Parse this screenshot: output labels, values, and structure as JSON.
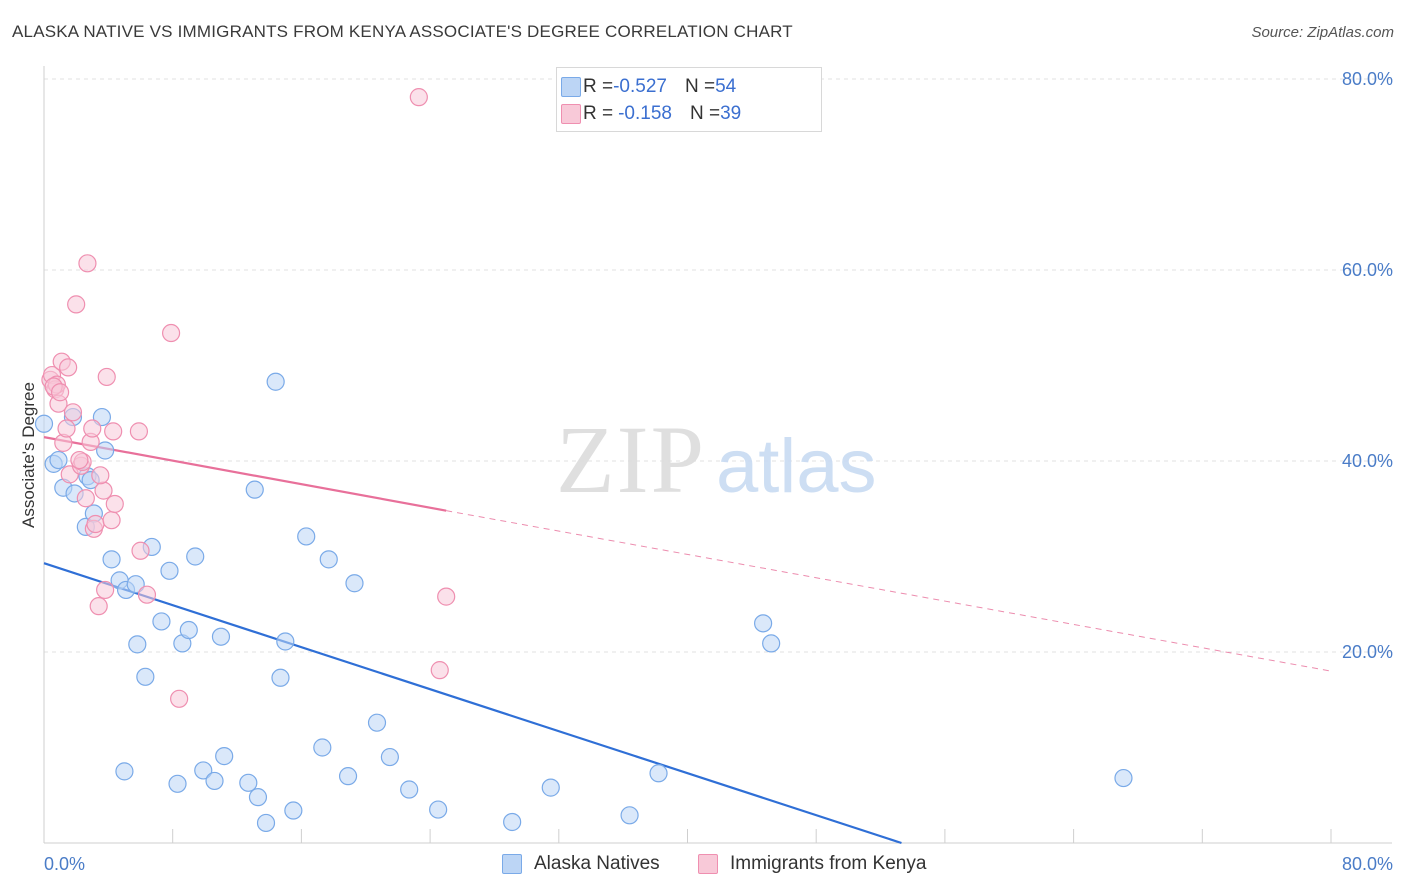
{
  "header": {
    "title": "ALASKA NATIVE VS IMMIGRANTS FROM KENYA ASSOCIATE'S DEGREE CORRELATION CHART",
    "source": "Source: ZipAtlas.com"
  },
  "watermark": {
    "zip": "ZIP",
    "atlas": "atlas"
  },
  "legend": {
    "rows": [
      {
        "r_label": "R = ",
        "r_value": "-0.527",
        "n_label": "N = ",
        "n_value": "54",
        "color": "#7aaae8",
        "fill": "#bcd5f5"
      },
      {
        "r_label": "R = ",
        "r_value": "-0.158",
        "n_label": "N = ",
        "n_value": "39",
        "color": "#ef8fb0",
        "fill": "#f8c9d8"
      }
    ]
  },
  "bottom_legend": {
    "items": [
      {
        "label": "Alaska Natives",
        "fill": "#bcd5f5",
        "color": "#7aaae8"
      },
      {
        "label": "Immigrants from Kenya",
        "fill": "#f8c9d8",
        "color": "#ef8fb0"
      }
    ]
  },
  "chart_data": {
    "type": "scatter",
    "title": "ALASKA NATIVE VS IMMIGRANTS FROM KENYA ASSOCIATE'S DEGREE CORRELATION CHART",
    "xlabel": "",
    "ylabel": "Associate's Degree",
    "xlim": [
      0,
      80
    ],
    "ylim": [
      0,
      80
    ],
    "x_tick_labels": [
      "0.0%",
      "80.0%"
    ],
    "y_ticks": [
      20,
      40,
      60,
      80
    ],
    "y_tick_labels": [
      "20.0%",
      "40.0%",
      "60.0%",
      "80.0%"
    ],
    "grid": true,
    "legend_position": "top-center",
    "series": [
      {
        "name": "Alaska Natives",
        "color": "#7aaae8",
        "fill": "#bcd5f5",
        "trend_color": "#2f6fd6",
        "trend": {
          "x0": 0,
          "y0": 29.3,
          "x1": 53.3,
          "y1": 0
        },
        "points": [
          [
            0.0,
            43.9
          ],
          [
            0.6,
            39.7
          ],
          [
            0.9,
            40.1
          ],
          [
            1.2,
            37.2
          ],
          [
            1.8,
            44.6
          ],
          [
            1.9,
            36.6
          ],
          [
            2.6,
            33.1
          ],
          [
            2.7,
            38.4
          ],
          [
            2.9,
            38.0
          ],
          [
            3.1,
            34.5
          ],
          [
            3.6,
            44.6
          ],
          [
            3.8,
            41.1
          ],
          [
            4.2,
            29.7
          ],
          [
            4.7,
            27.5
          ],
          [
            5.1,
            26.5
          ],
          [
            5.7,
            27.1
          ],
          [
            5.8,
            20.8
          ],
          [
            6.3,
            17.4
          ],
          [
            6.7,
            31.0
          ],
          [
            7.3,
            23.2
          ],
          [
            7.8,
            28.5
          ],
          [
            8.3,
            6.2
          ],
          [
            8.6,
            20.9
          ],
          [
            9.0,
            22.3
          ],
          [
            9.4,
            30.0
          ],
          [
            9.9,
            7.6
          ],
          [
            10.6,
            6.5
          ],
          [
            11.0,
            21.6
          ],
          [
            11.2,
            9.1
          ],
          [
            12.7,
            6.3
          ],
          [
            13.1,
            37.0
          ],
          [
            13.3,
            4.8
          ],
          [
            13.8,
            2.1
          ],
          [
            14.4,
            48.3
          ],
          [
            14.7,
            17.3
          ],
          [
            15.0,
            21.1
          ],
          [
            15.5,
            3.4
          ],
          [
            16.3,
            32.1
          ],
          [
            17.3,
            10.0
          ],
          [
            17.7,
            29.7
          ],
          [
            18.9,
            7.0
          ],
          [
            19.3,
            27.2
          ],
          [
            20.7,
            12.6
          ],
          [
            21.5,
            9.0
          ],
          [
            22.7,
            5.6
          ],
          [
            24.5,
            3.5
          ],
          [
            29.1,
            2.2
          ],
          [
            31.5,
            5.8
          ],
          [
            36.4,
            2.9
          ],
          [
            38.2,
            7.3
          ],
          [
            44.7,
            23.0
          ],
          [
            45.2,
            20.9
          ],
          [
            67.1,
            6.8
          ],
          [
            5.0,
            7.5
          ]
        ]
      },
      {
        "name": "Immigrants from Kenya",
        "color": "#ef8fb0",
        "fill": "#f8c9d8",
        "trend_color": "#e8709a",
        "trend": {
          "x0": 0,
          "y0": 42.5,
          "x1": 25.0,
          "y1": 34.8
        },
        "trend_dashed": {
          "x0": 25.0,
          "y0": 34.8,
          "x1": 80,
          "y1": 18.0
        },
        "points": [
          [
            0.4,
            48.5
          ],
          [
            0.5,
            49.0
          ],
          [
            0.7,
            47.5
          ],
          [
            0.8,
            48.0
          ],
          [
            0.9,
            46.0
          ],
          [
            1.1,
            50.4
          ],
          [
            1.2,
            41.9
          ],
          [
            1.4,
            43.4
          ],
          [
            1.5,
            49.8
          ],
          [
            1.6,
            38.6
          ],
          [
            1.8,
            45.1
          ],
          [
            2.0,
            56.4
          ],
          [
            2.3,
            39.5
          ],
          [
            2.6,
            36.1
          ],
          [
            2.7,
            60.7
          ],
          [
            2.9,
            42.0
          ],
          [
            3.0,
            43.4
          ],
          [
            3.1,
            32.9
          ],
          [
            3.2,
            33.4
          ],
          [
            3.4,
            24.8
          ],
          [
            3.7,
            36.9
          ],
          [
            3.8,
            26.5
          ],
          [
            3.9,
            48.8
          ],
          [
            4.2,
            33.8
          ],
          [
            4.3,
            43.1
          ],
          [
            4.4,
            35.5
          ],
          [
            5.9,
            43.1
          ],
          [
            6.0,
            30.6
          ],
          [
            6.4,
            26.0
          ],
          [
            7.9,
            53.4
          ],
          [
            8.4,
            15.1
          ],
          [
            23.3,
            78.1
          ],
          [
            24.6,
            18.1
          ],
          [
            25.0,
            25.8
          ],
          [
            0.6,
            47.8
          ],
          [
            2.4,
            39.9
          ],
          [
            1.0,
            47.2
          ],
          [
            3.5,
            38.5
          ],
          [
            2.2,
            40.1
          ]
        ]
      }
    ]
  }
}
